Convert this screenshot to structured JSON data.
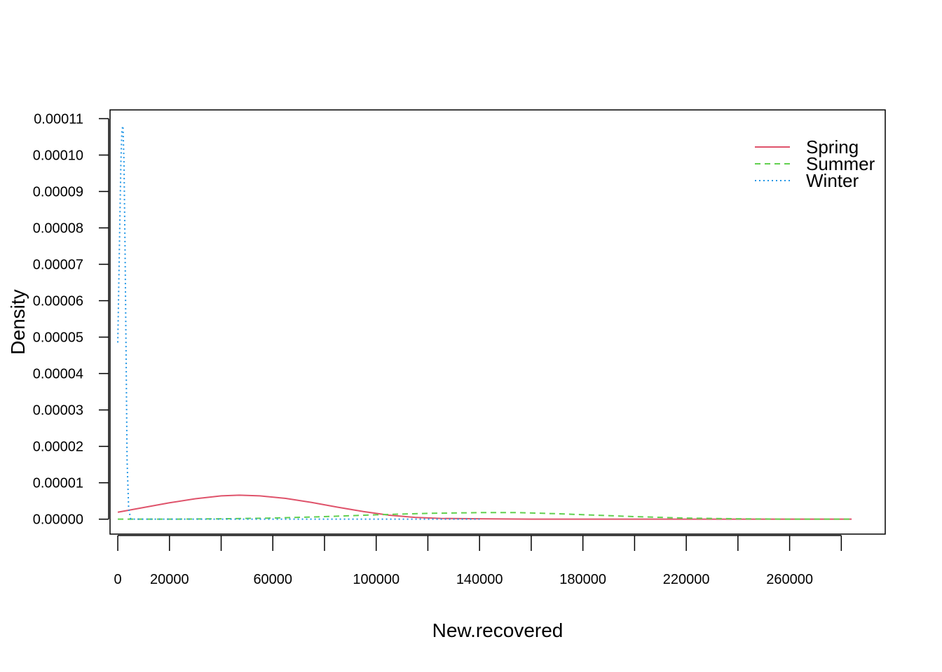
{
  "chart_data": {
    "type": "line",
    "title": "",
    "xlabel": "New.recovered",
    "ylabel": "Density",
    "xlim": [
      -3000,
      297000
    ],
    "ylim": [
      -4.1e-06,
      0.0001124
    ],
    "x_ticks": [
      0,
      20000,
      40000,
      60000,
      80000,
      100000,
      120000,
      140000,
      160000,
      180000,
      200000,
      220000,
      240000,
      260000,
      280000
    ],
    "x_tick_labels": [
      "0",
      "20000",
      "",
      "60000",
      "",
      "100000",
      "",
      "140000",
      "",
      "180000",
      "",
      "220000",
      "",
      "260000",
      ""
    ],
    "y_ticks": [
      0,
      1e-05,
      2e-05,
      3e-05,
      4e-05,
      5e-05,
      6e-05,
      7e-05,
      8e-05,
      9e-05,
      0.0001,
      0.00011
    ],
    "y_tick_labels": [
      "0.00000",
      "0.00001",
      "0.00002",
      "0.00003",
      "0.00004",
      "0.00005",
      "0.00006",
      "0.00007",
      "0.00008",
      "0.00009",
      "0.00010",
      "0.00011"
    ],
    "grid": false,
    "legend_position": "top-right",
    "series": [
      {
        "name": "Spring",
        "color": "#DF536B",
        "dash": "solid",
        "x": [
          0,
          10000,
          20000,
          30000,
          40000,
          47000,
          55000,
          65000,
          75000,
          85000,
          95000,
          105000,
          115000,
          125000,
          140000,
          160000,
          200000,
          240000,
          284000
        ],
        "y": [
          1.9e-06,
          3.2e-06,
          4.5e-06,
          5.6e-06,
          6.4e-06,
          6.6e-06,
          6.4e-06,
          5.7e-06,
          4.6e-06,
          3.3e-06,
          2.1e-06,
          1.1e-06,
          5e-07,
          2e-07,
          1e-07,
          0,
          0,
          0,
          0
        ]
      },
      {
        "name": "Summer",
        "color": "#61D04F",
        "dash": "dashed",
        "x": [
          0,
          20000,
          40000,
          60000,
          80000,
          100000,
          120000,
          140000,
          155000,
          170000,
          185000,
          200000,
          220000,
          240000,
          260000,
          284000
        ],
        "y": [
          0,
          0,
          1e-07,
          3e-07,
          7e-07,
          1.2e-06,
          1.6e-06,
          1.8e-06,
          1.8e-06,
          1.5e-06,
          1.1e-06,
          7e-07,
          3e-07,
          1e-07,
          0,
          0
        ]
      },
      {
        "name": "Winter",
        "color": "#2297E6",
        "dash": "dotted",
        "x": [
          0,
          800,
          1200,
          1600,
          2000,
          2400,
          2800,
          3200,
          3600,
          4200,
          5000,
          8000,
          20000,
          60000,
          100000,
          140000
        ],
        "y": [
          4.85e-05,
          8.2e-05,
          9.8e-05,
          0.000107,
          0.000108,
          9.8e-05,
          7.5e-05,
          4.6e-05,
          1.6e-05,
          3e-06,
          0,
          0,
          0,
          0,
          0,
          0
        ]
      }
    ]
  }
}
